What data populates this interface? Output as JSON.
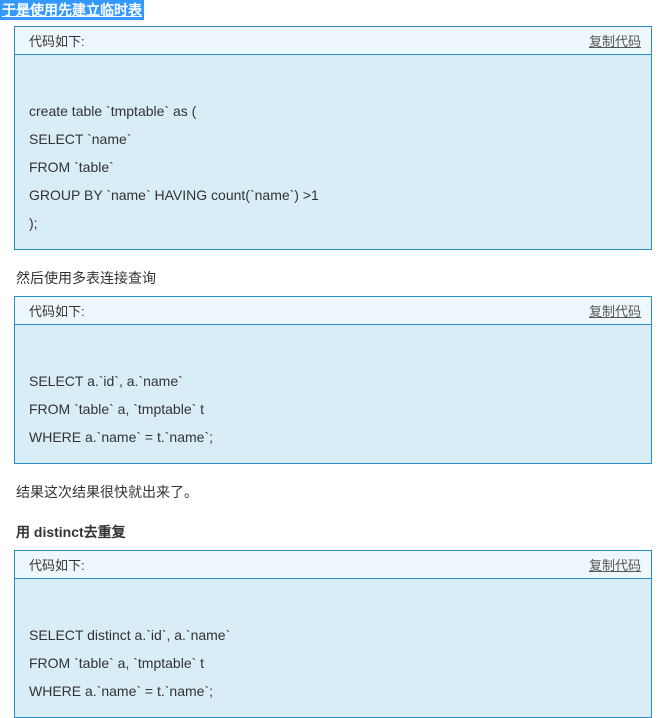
{
  "heading_highlight": "于是使用先建立临时表",
  "section2_text": "然后使用多表连接查询",
  "section3_text": "结果这次结果很快就出来了。",
  "section4_text": "用 distinct去重复",
  "code_label": "代码如下:",
  "copy_label": "复制代码",
  "code1": "\ncreate table `tmptable` as (\nSELECT `name`\nFROM `table`\nGROUP BY `name` HAVING count(`name`) >1\n);",
  "code2": "\nSELECT a.`id`, a.`name`\nFROM `table` a, `tmptable` t\nWHERE a.`name` = t.`name`;",
  "code3": "\nSELECT distinct a.`id`, a.`name`\nFROM `table` a, `tmptable` t\nWHERE a.`name` = t.`name`;",
  "colors": {
    "highlight_bg": "#3399ff",
    "border": "#2a8ec2",
    "header_bg": "#eef7fb",
    "body_bg": "#d9edf7",
    "text": "#333333"
  }
}
